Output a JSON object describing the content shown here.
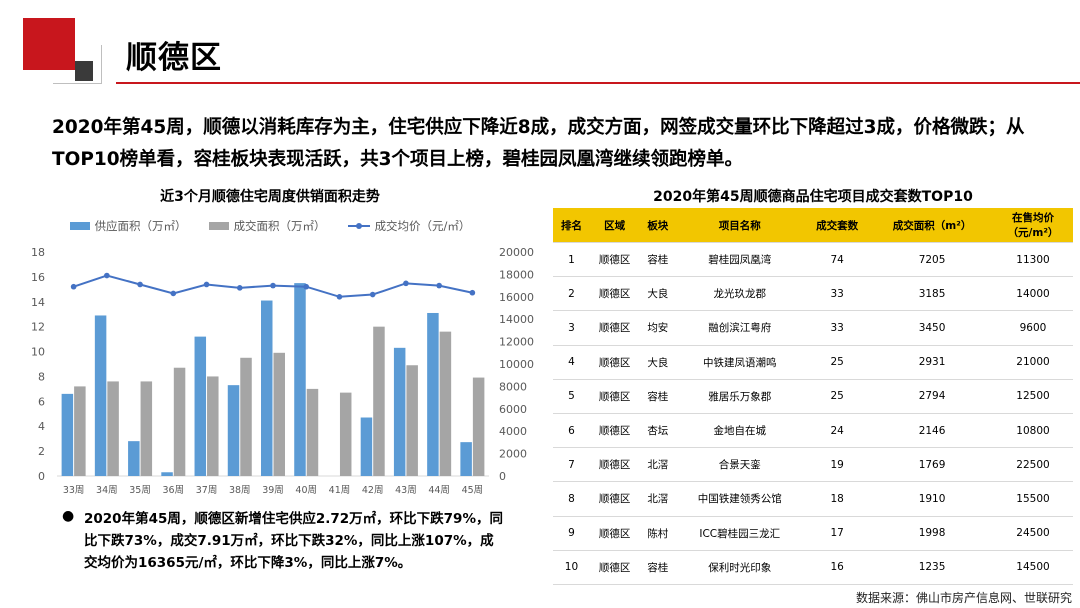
{
  "page_title": "顺德区",
  "intro": "2020年第45周，顺德以消耗库存为主，住宅供应下降近8成，成交方面，网签成交量环比下降超过3成，价格微跌；从TOP10榜单看，容桂板块表现活跃，共3个项目上榜，碧桂园凤凰湾继续领跑榜单。",
  "colors": {
    "brand_red": "#c8161d",
    "supply": "#5b9bd5",
    "deal": "#a5a5a5",
    "price": "#4472c4",
    "table_header": "#f2c600"
  },
  "chart_data": {
    "type": "bar",
    "title": "近3个月顺德住宅周度供销面积走势",
    "categories": [
      "33周",
      "34周",
      "35周",
      "36周",
      "37周",
      "38周",
      "39周",
      "40周",
      "41周",
      "42周",
      "43周",
      "44周",
      "45周"
    ],
    "series": [
      {
        "name": "供应面积（万㎡）",
        "type": "bar",
        "axis": "left",
        "values": [
          6.6,
          12.9,
          2.8,
          0.3,
          11.2,
          7.3,
          14.1,
          15.5,
          0,
          4.7,
          10.3,
          13.1,
          2.72
        ]
      },
      {
        "name": "成交面积（万㎡）",
        "type": "bar",
        "axis": "left",
        "values": [
          7.2,
          7.6,
          7.6,
          8.7,
          8.0,
          9.5,
          9.9,
          7.0,
          6.7,
          12.0,
          8.9,
          11.6,
          7.91
        ]
      },
      {
        "name": "成交均价（元/㎡）",
        "type": "line",
        "axis": "right",
        "values": [
          16900,
          17900,
          17100,
          16300,
          17100,
          16800,
          17000,
          16900,
          16000,
          16200,
          17200,
          17000,
          16365
        ]
      }
    ],
    "ylim": [
      0,
      18
    ],
    "y_ticks": [
      "0",
      "2",
      "4",
      "6",
      "8",
      "10",
      "12",
      "14",
      "16",
      "18"
    ],
    "y2lim": [
      0,
      20000
    ],
    "y2_ticks": [
      "0",
      "2000",
      "4000",
      "6000",
      "8000",
      "10000",
      "12000",
      "14000",
      "16000",
      "18000",
      "20000"
    ],
    "legend_position": "top",
    "grid": false
  },
  "table": {
    "title": "2020年第45周顺德商品住宅项目成交套数TOP10",
    "headers": [
      "排名",
      "区域",
      "板块",
      "项目名称",
      "成交套数",
      "成交面积（m²）",
      "在售均价（元/m²）"
    ],
    "rows": [
      [
        "1",
        "顺德区",
        "容桂",
        "碧桂园凤凰湾",
        "74",
        "7205",
        "11300"
      ],
      [
        "2",
        "顺德区",
        "大良",
        "龙光玖龙郡",
        "33",
        "3185",
        "14000"
      ],
      [
        "3",
        "顺德区",
        "均安",
        "融创滨江粤府",
        "33",
        "3450",
        "9600"
      ],
      [
        "4",
        "顺德区",
        "大良",
        "中铁建凤语潮鸣",
        "25",
        "2931",
        "21000"
      ],
      [
        "5",
        "顺德区",
        "容桂",
        "雅居乐万象郡",
        "25",
        "2794",
        "12500"
      ],
      [
        "6",
        "顺德区",
        "杏坛",
        "金地自在城",
        "24",
        "2146",
        "10800"
      ],
      [
        "7",
        "顺德区",
        "北滘",
        "合景天銮",
        "19",
        "1769",
        "22500"
      ],
      [
        "8",
        "顺德区",
        "北滘",
        "中国铁建领秀公馆",
        "18",
        "1910",
        "15500"
      ],
      [
        "9",
        "顺德区",
        "陈村",
        "ICC碧桂园三龙汇",
        "17",
        "1998",
        "24500"
      ],
      [
        "10",
        "顺德区",
        "容桂",
        "保利时光印象",
        "16",
        "1235",
        "14500"
      ]
    ]
  },
  "bullet": "●",
  "summary": "2020年第45周，顺德区新增住宅供应2.72万㎡，环比下跌79%，同比下跌73%，成交7.91万㎡，环比下跌32%，同比上涨107%，成交均价为16365元/㎡，环比下降3%，同比上涨7%。",
  "source": "数据来源：佛山市房产信息网、世联研究"
}
